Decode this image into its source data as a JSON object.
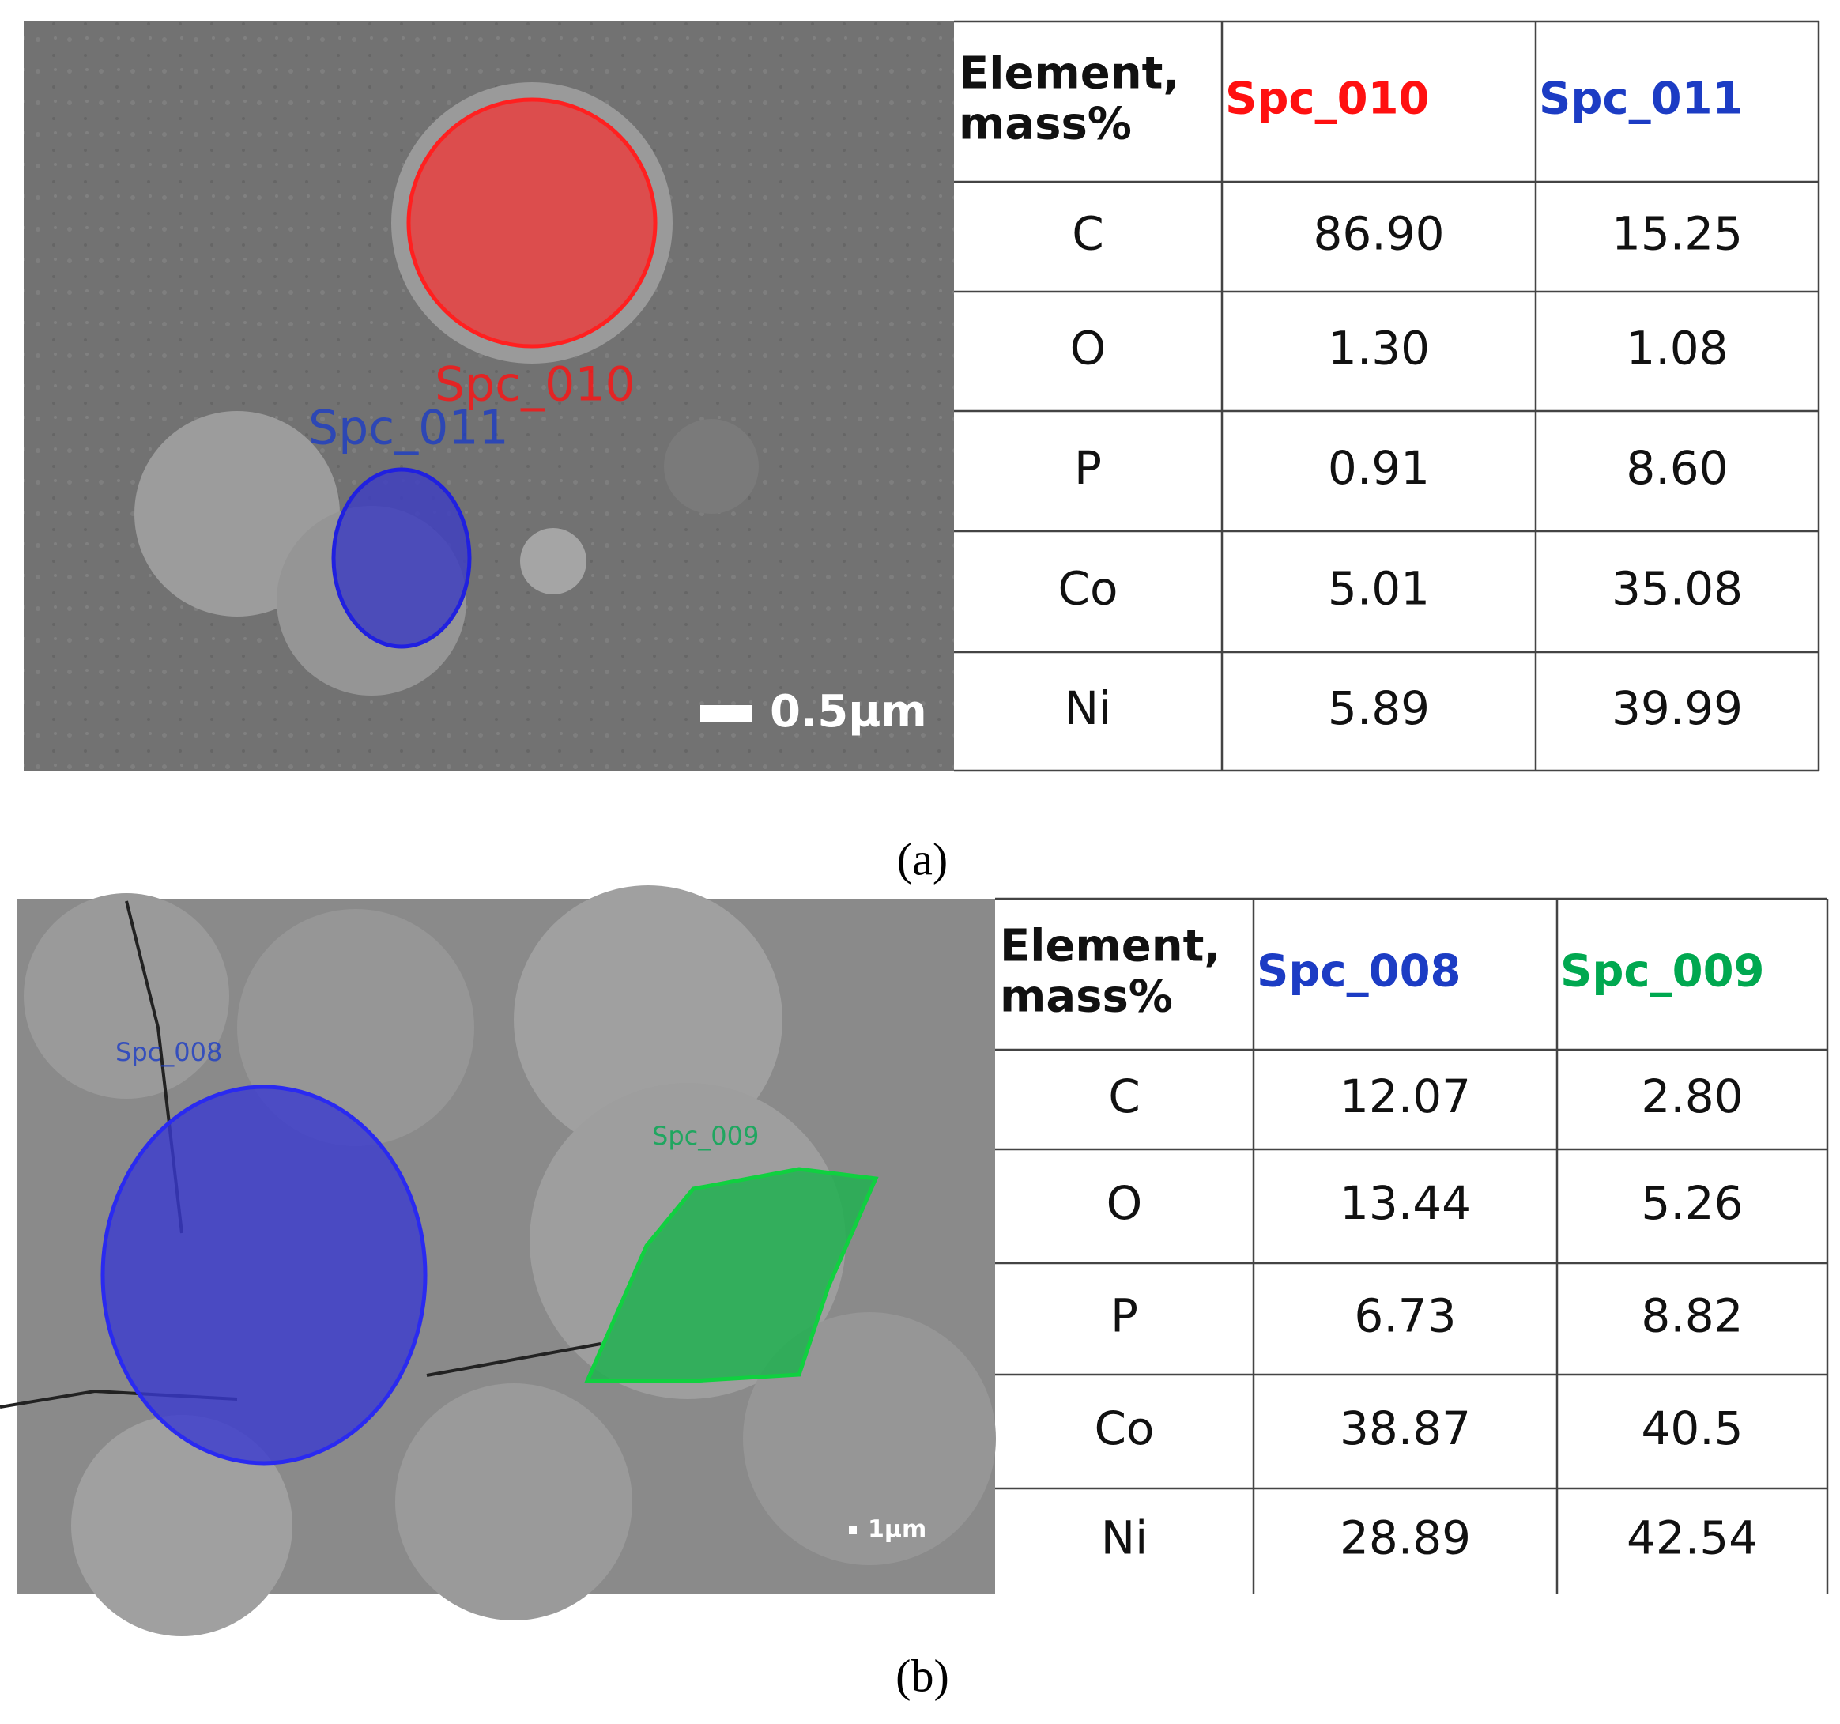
{
  "panels": [
    {
      "caption": "(a)",
      "image": {
        "labels": [
          "Spc_010",
          "Spc_011"
        ],
        "scale_bar": "0.5µm"
      },
      "table": {
        "row_header": [
          "Element,",
          "mass%"
        ],
        "columns": [
          {
            "name": "Spc_010",
            "color": "#ff1010"
          },
          {
            "name": "Spc_011",
            "color": "#1c3cc4"
          }
        ],
        "rows": [
          [
            "C",
            "86.90",
            "15.25"
          ],
          [
            "O",
            "1.30",
            "1.08"
          ],
          [
            "P",
            "0.91",
            "8.60"
          ],
          [
            "Co",
            "5.01",
            "35.08"
          ],
          [
            "Ni",
            "5.89",
            "39.99"
          ]
        ]
      }
    },
    {
      "caption": "(b)",
      "image": {
        "labels": [
          "Spc_008",
          "Spc_009"
        ],
        "scale_bar": "1µm"
      },
      "table": {
        "row_header": [
          "Element,",
          "mass%"
        ],
        "columns": [
          {
            "name": "Spc_008",
            "color": "#1c3cc4"
          },
          {
            "name": "Spc_009",
            "color": "#00a850"
          }
        ],
        "rows": [
          [
            "C",
            "12.07",
            "2.80"
          ],
          [
            "O",
            "13.44",
            "5.26"
          ],
          [
            "P",
            "6.73",
            "8.82"
          ],
          [
            "Co",
            "38.87",
            "40.5"
          ],
          [
            "Ni",
            "28.89",
            "42.54"
          ]
        ]
      }
    }
  ]
}
